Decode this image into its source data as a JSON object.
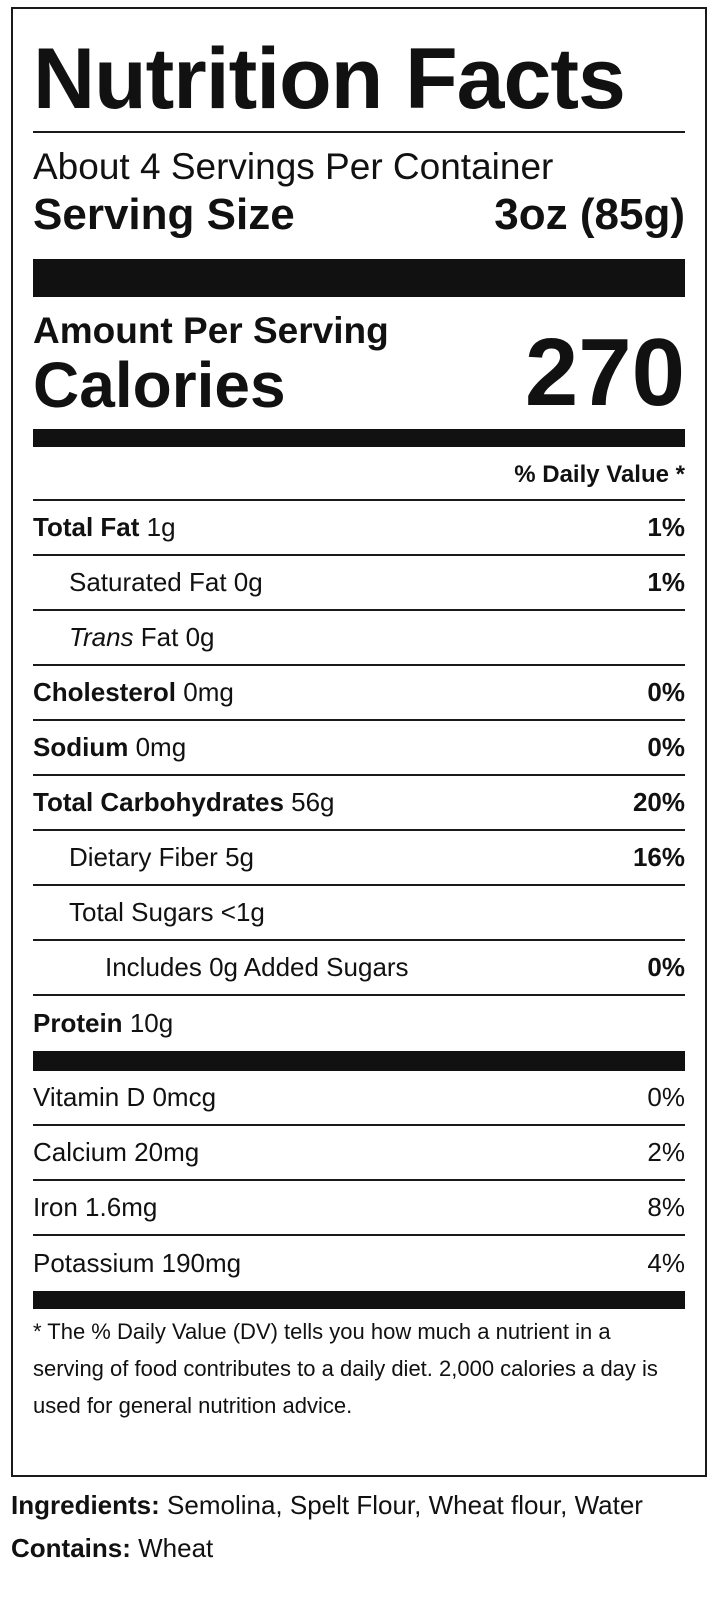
{
  "label": {
    "title": "Nutrition Facts",
    "servings_per_container": "About 4 Servings Per Container",
    "serving_size_label": "Serving Size",
    "serving_size_value": "3oz (85g)",
    "amount_per_serving": "Amount Per Serving",
    "calories_label": "Calories",
    "calories_value": "270",
    "daily_value_header": "% Daily Value *",
    "nutrients": [
      {
        "name": "Total Fat",
        "amount": "1g",
        "dv": "1%"
      },
      {
        "name": "Saturated Fat",
        "amount": "0g",
        "dv": "1%"
      },
      {
        "name_italic": "Trans",
        "name": "Fat",
        "amount": "0g",
        "dv": ""
      },
      {
        "name": "Cholesterol",
        "amount": "0mg",
        "dv": "0%"
      },
      {
        "name": "Sodium",
        "amount": "0mg",
        "dv": "0%"
      },
      {
        "name": "Total Carbohydrates",
        "amount": "56g",
        "dv": "20%"
      },
      {
        "name": "Dietary Fiber",
        "amount": "5g",
        "dv": "16%"
      },
      {
        "name": "Total Sugars",
        "amount": "<1g",
        "dv": ""
      },
      {
        "name": "Includes 0g Added Sugars",
        "amount": "",
        "dv": "0%"
      },
      {
        "name": "Protein",
        "amount": "10g",
        "dv": ""
      }
    ],
    "vitamins": [
      {
        "name": "Vitamin D",
        "amount": "0mcg",
        "dv": "0%"
      },
      {
        "name": "Calcium",
        "amount": "20mg",
        "dv": "2%"
      },
      {
        "name": "Iron",
        "amount": "1.6mg",
        "dv": "8%"
      },
      {
        "name": "Potassium",
        "amount": "190mg",
        "dv": "4%"
      }
    ],
    "footnote": "* The % Daily Value (DV) tells you how much a nutrient in a serving of food contributes to a daily diet. 2,000 calories a day is used for general nutrition advice."
  },
  "ingredients": {
    "label": "Ingredients:",
    "text": "Semolina, Spelt Flour, Wheat flour, Water"
  },
  "contains": {
    "label": "Contains:",
    "text": "Wheat"
  }
}
